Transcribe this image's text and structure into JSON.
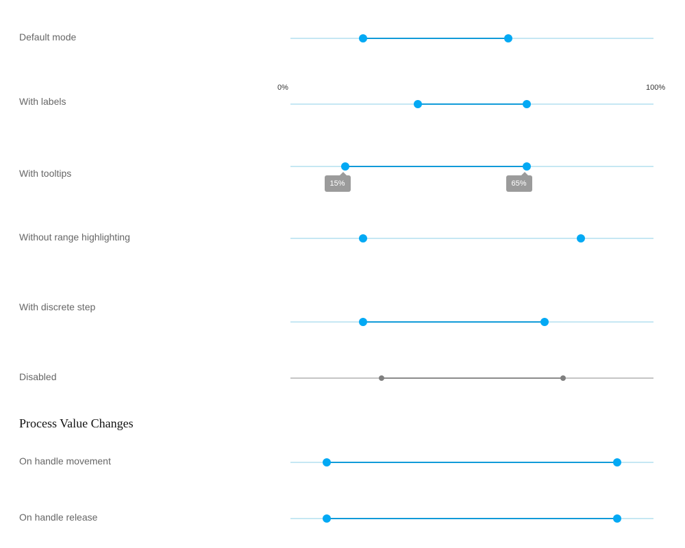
{
  "sliders": [
    {
      "id": "default",
      "label": "Default mode",
      "start": 0.2,
      "end": 0.6,
      "highlight": true,
      "disabled": false
    },
    {
      "id": "labels",
      "label": "With labels",
      "start": 0.35,
      "end": 0.65,
      "highlight": true,
      "disabled": false,
      "scale_min_label": "0%",
      "scale_max_label": "100%"
    },
    {
      "id": "tooltips",
      "label": "With tooltips",
      "start": 0.15,
      "end": 0.65,
      "highlight": true,
      "disabled": false,
      "tooltip_start": "15%",
      "tooltip_end": "65%"
    },
    {
      "id": "no-highlight",
      "label": "Without range highlighting",
      "start": 0.2,
      "end": 0.8,
      "highlight": false,
      "disabled": false
    },
    {
      "id": "discrete",
      "label": "With discrete step",
      "start": 0.2,
      "end": 0.7,
      "highlight": true,
      "disabled": false
    },
    {
      "id": "disabled",
      "label": "Disabled",
      "start": 0.25,
      "end": 0.75,
      "highlight": true,
      "disabled": true
    }
  ],
  "section": {
    "title": "Process Value Changes"
  },
  "process_sliders": [
    {
      "id": "movement",
      "label": "On handle movement",
      "start": 0.1,
      "end": 0.9,
      "highlight": true,
      "disabled": false
    },
    {
      "id": "release",
      "label": "On handle release",
      "start": 0.1,
      "end": 0.9,
      "highlight": true,
      "disabled": false
    }
  ]
}
